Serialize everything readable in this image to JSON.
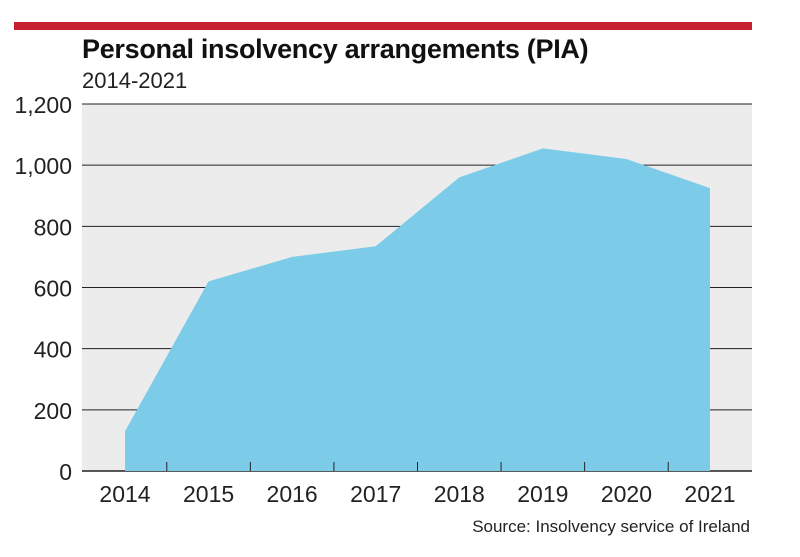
{
  "colors": {
    "accent_rule": "#c8202e",
    "area_fill": "#7ccce9",
    "plot_bg": "#ececec",
    "gridline": "#222222"
  },
  "chart_data": {
    "type": "area",
    "title": "Personal insolvency arrangements (PIA)",
    "subtitle": "2014-2021",
    "source": "Source: Insolvency service of Ireland",
    "xlabel": "",
    "ylabel": "",
    "categories": [
      "2014",
      "2015",
      "2016",
      "2017",
      "2018",
      "2019",
      "2020",
      "2021"
    ],
    "values": [
      130,
      620,
      700,
      735,
      960,
      1055,
      1020,
      925
    ],
    "y_ticks": [
      "0",
      "200",
      "400",
      "600",
      "800",
      "1,000",
      "1,200"
    ],
    "ylim": [
      0,
      1200
    ],
    "grid": true,
    "legend": "none"
  }
}
